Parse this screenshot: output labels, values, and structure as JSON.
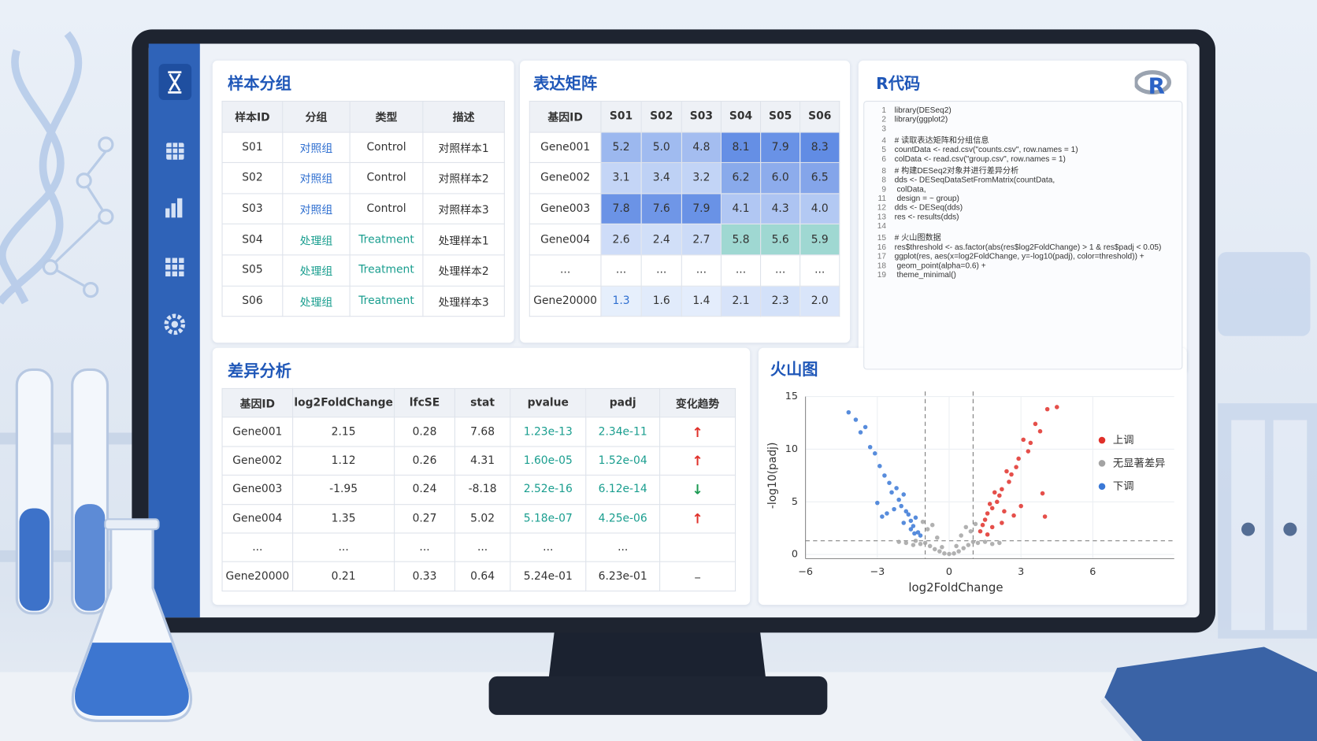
{
  "samples": {
    "title": "样本分组",
    "header": [
      "样本ID",
      "分组",
      "类型",
      "描述"
    ],
    "rows": [
      [
        "S01",
        "对照组",
        "Control",
        "对照样本1"
      ],
      [
        "S02",
        "对照组",
        "Control",
        "对照样本2"
      ],
      [
        "S03",
        "对照组",
        "Control",
        "对照样本3"
      ],
      [
        "S04",
        "处理组",
        "Treatment",
        "处理样本1"
      ],
      [
        "S05",
        "处理组",
        "Treatment",
        "处理样本2"
      ],
      [
        "S06",
        "处理组",
        "Treatment",
        "处理样本3"
      ]
    ]
  },
  "matrix": {
    "title": "表达矩阵",
    "header": [
      "基因ID",
      "S01",
      "S02",
      "S03",
      "S04",
      "S05",
      "S06"
    ],
    "rows": [
      [
        "Gene001",
        "5.2",
        "5.0",
        "4.8",
        "8.1",
        "7.9",
        "8.3"
      ],
      [
        "Gene002",
        "3.1",
        "3.4",
        "3.2",
        "6.2",
        "6.0",
        "6.5"
      ],
      [
        "Gene003",
        "7.8",
        "7.6",
        "7.9",
        "4.1",
        "4.3",
        "4.0"
      ],
      [
        "Gene004",
        "2.6",
        "2.4",
        "2.7",
        "5.8",
        "5.6",
        "5.9"
      ],
      [
        "...",
        "...",
        "...",
        "...",
        "...",
        "...",
        "..."
      ],
      [
        "Gene20000",
        "1.3",
        "1.6",
        "1.4",
        "2.1",
        "2.3",
        "2.0"
      ]
    ]
  },
  "code": {
    "title": "R代码",
    "logo": "R",
    "lines": [
      {
        "n": "1",
        "text": "library(DESeq2)"
      },
      {
        "n": "2",
        "text": "library(ggplot2)"
      },
      {
        "n": "3"
      },
      {
        "n": "4",
        "text": "# 读取表达矩阵和分组信息"
      },
      {
        "n": "5",
        "text": "countData <- read.csv(\"counts.csv\", row.names = 1)"
      },
      {
        "n": "6",
        "text": "colData <- read.csv(\"group.csv\", row.names = 1)"
      },
      {
        "n": "8",
        "text": "# 构建DESeq2对象并进行差异分析"
      },
      {
        "n": "8",
        "text": "dds <- DESeqDataSetFromMatrix(countData,"
      },
      {
        "n": "9",
        "text": "                                        colData,"
      },
      {
        "n": "11",
        "text": "                                        design = ~ group)"
      },
      {
        "n": "12",
        "text": "dds <- DESeq(dds)"
      },
      {
        "n": "13",
        "text": "res <- results(dds)"
      },
      {
        "n": "14"
      },
      {
        "n": "15",
        "text": "# 火山图数据"
      },
      {
        "n": "16",
        "text": "res$threshold <- as.factor(abs(res$log2FoldChange) > 1 & res$padj < 0.05)"
      },
      {
        "n": "17",
        "text": "ggplot(res, aes(x=log2FoldChange, y=-log10(padj), color=threshold)) +"
      },
      {
        "n": "18",
        "text": "    geom_point(alpha=0.6) +"
      },
      {
        "n": "19",
        "text": "    theme_minimal()"
      }
    ]
  },
  "diff": {
    "title": "差异分析",
    "header": [
      "基因ID",
      "log2FoldChange",
      "lfcSE",
      "stat",
      "pvalue",
      "padj",
      "变化趋势"
    ],
    "rows": [
      [
        "Gene001",
        "2.15",
        "0.28",
        "7.68",
        "1.23e-13",
        "2.34e-11",
        "↑"
      ],
      [
        "Gene002",
        "1.12",
        "0.26",
        "4.31",
        "1.60e-05",
        "1.52e-04",
        "↑"
      ],
      [
        "Gene003",
        "-1.95",
        "0.24",
        "-8.18",
        "2.52e-16",
        "6.12e-14",
        "↓"
      ],
      [
        "Gene004",
        "1.35",
        "0.27",
        "5.02",
        "5.18e-07",
        "4.25e-06",
        "↑"
      ],
      [
        "...",
        "...",
        "...",
        "...",
        "...",
        "..."
      ],
      [
        "Gene20000",
        "0.21",
        "0.33",
        "0.64",
        "5.24e-01",
        "6.23e-01",
        "–"
      ]
    ]
  },
  "chart_data": {
    "type": "scatter",
    "title": "火山图",
    "xlabel": "log2FoldChange",
    "ylabel": "-log10(padj)",
    "xlim": [
      -6,
      9.4
    ],
    "ylim": [
      -0.4,
      15
    ],
    "xticks": [
      {
        "value": -6,
        "label": "−6"
      },
      {
        "value": -3,
        "label": "−3"
      },
      0,
      3,
      6
    ],
    "yticks": [
      0,
      5,
      10,
      15
    ],
    "grid": true,
    "legend": "right",
    "vlines": [
      -1,
      1
    ],
    "hline": 1.3,
    "series": [
      {
        "name": "上调",
        "color": "#e0302a",
        "x": [
          4.5,
          4.1,
          3.8,
          3.6,
          3.4,
          3.3,
          3.1,
          2.9,
          2.8,
          2.6,
          2.5,
          2.4,
          2.2,
          2.1,
          2.0,
          1.9,
          1.8,
          1.7,
          1.6,
          1.5,
          1.4,
          1.3,
          2.3,
          2.7,
          3.0,
          1.8,
          2.2,
          1.6,
          3.9,
          4.0
        ],
        "values": [
          14.0,
          13.8,
          11.7,
          12.4,
          10.6,
          9.8,
          10.9,
          9.1,
          8.3,
          7.6,
          6.9,
          7.9,
          6.2,
          5.6,
          5.0,
          5.9,
          4.4,
          4.8,
          3.9,
          3.3,
          2.8,
          2.2,
          4.1,
          3.7,
          4.6,
          2.6,
          3.0,
          1.9,
          5.8,
          3.6
        ]
      },
      {
        "name": "无显著差异",
        "color": "#a3a3a3",
        "x": [
          -0.2,
          0.2,
          -0.4,
          0.4,
          -0.6,
          0.6,
          -0.8,
          0.8,
          -1.0,
          1.0,
          -1.2,
          1.2,
          -1.5,
          1.5,
          -1.8,
          1.8,
          -2.1,
          2.1,
          -0.5,
          0.5,
          -0.9,
          0.9,
          -0.7,
          0.7,
          -0.3,
          0.3,
          0,
          -1.1,
          1.1,
          -1.4
        ],
        "values": [
          0.1,
          0.1,
          0.3,
          0.3,
          0.5,
          0.6,
          0.8,
          0.9,
          1.1,
          1.2,
          1.0,
          1.1,
          0.9,
          1.2,
          1.1,
          1.0,
          1.2,
          1.1,
          1.6,
          1.8,
          2.4,
          2.2,
          2.8,
          2.6,
          0.7,
          0.8,
          0.05,
          3.1,
          2.9,
          1.3
        ]
      },
      {
        "name": "下调",
        "color": "#3a78d6",
        "x": [
          -4.2,
          -3.9,
          -3.7,
          -3.5,
          -3.3,
          -3.1,
          -2.9,
          -2.7,
          -2.5,
          -2.4,
          -2.2,
          -2.1,
          -2.0,
          -1.9,
          -1.8,
          -1.7,
          -1.6,
          -1.5,
          -1.4,
          -1.3,
          -1.9,
          -2.3,
          -2.6,
          -1.6,
          -1.2,
          -3.0,
          -2.8,
          -1.45
        ],
        "values": [
          13.5,
          12.8,
          11.6,
          12.1,
          10.2,
          9.6,
          8.4,
          7.5,
          6.8,
          5.9,
          6.3,
          5.2,
          4.6,
          5.7,
          4.1,
          3.8,
          3.2,
          2.7,
          3.5,
          2.1,
          3.0,
          4.3,
          3.9,
          2.4,
          1.8,
          4.9,
          3.6,
          2.0
        ]
      }
    ]
  }
}
